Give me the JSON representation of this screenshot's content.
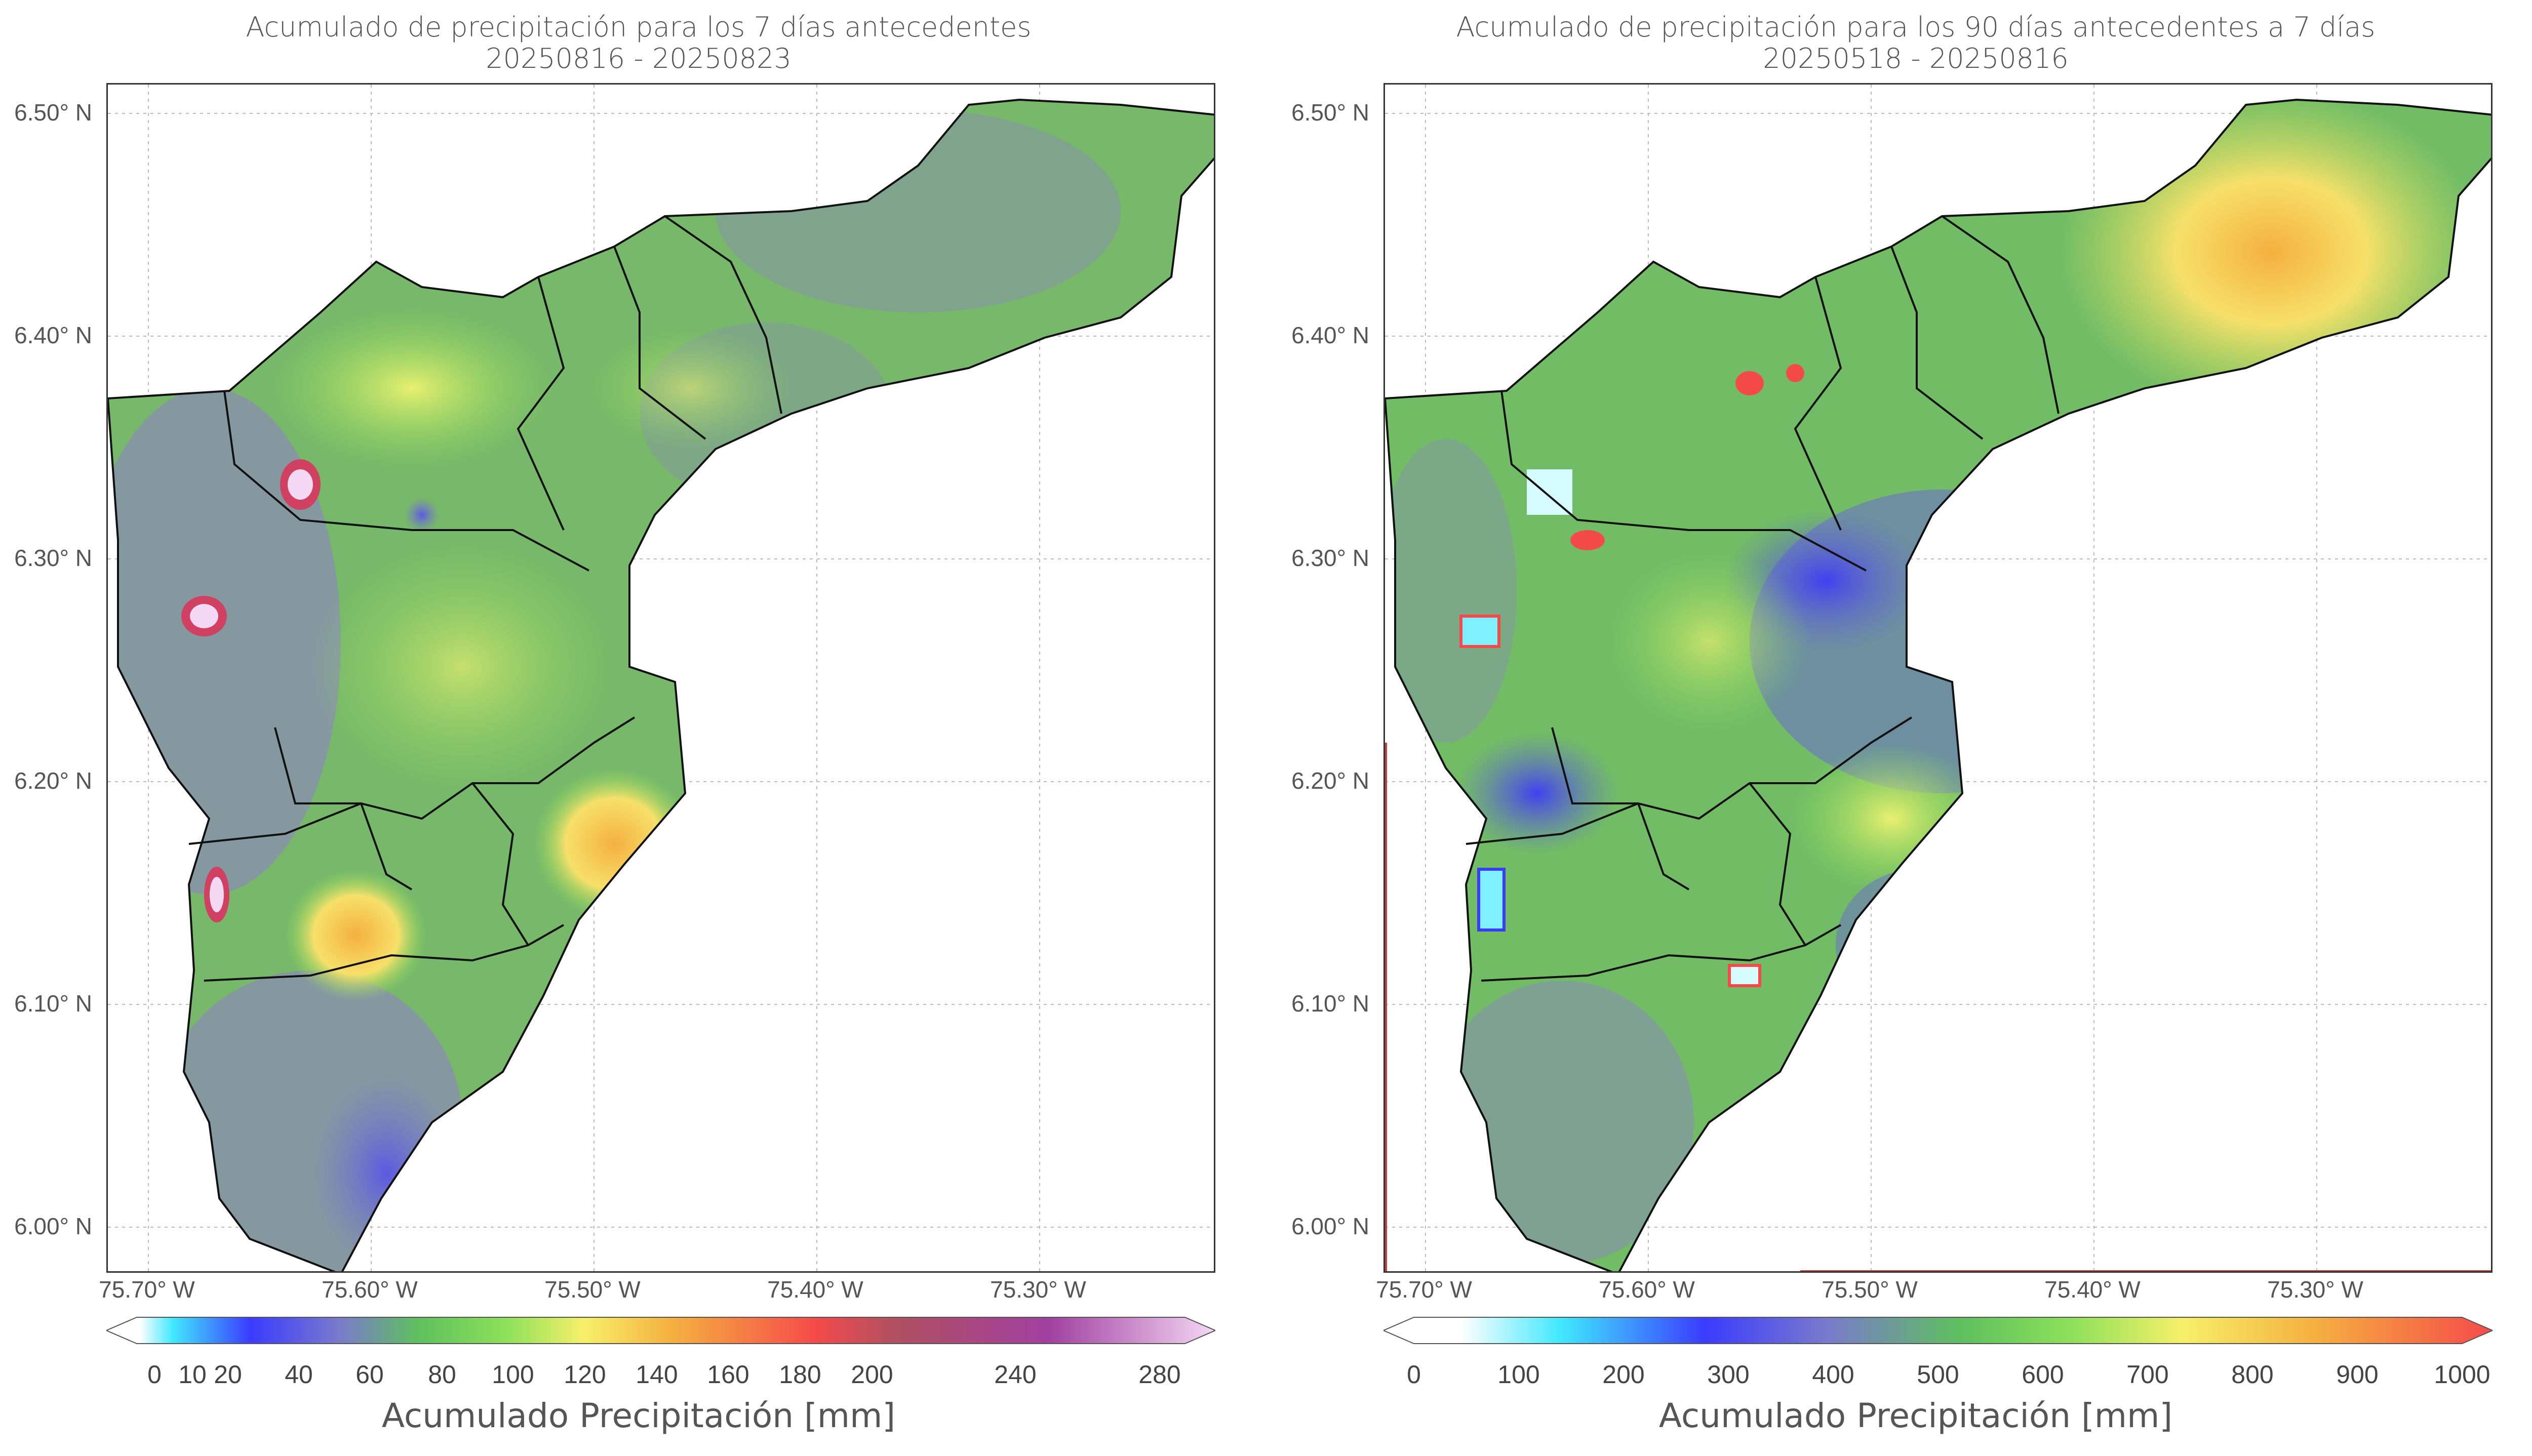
{
  "maps": [
    {
      "title": "Acumulado de precipitación para los 7 días antecedentes",
      "subtitle": "20250816 - 20250823",
      "lat_labels": [
        "6.50° N",
        "6.40° N",
        "6.30° N",
        "6.20° N",
        "6.10° N",
        "6.00° N"
      ],
      "lon_labels": [
        "75.70° W",
        "75.60° W",
        "75.50° W",
        "75.40° W",
        "75.30° W"
      ],
      "colorbar_label": "Acumulado Precipitación [mm]",
      "colorbar_ticks": [
        "0",
        "10",
        "20",
        "40",
        "60",
        "80",
        "100",
        "120",
        "140",
        "160",
        "180",
        "200",
        "240",
        "280"
      ],
      "colorbar_colors": [
        "#ffffff",
        "#40e0ff",
        "#3b3bff",
        "#7a7acc",
        "#5fbf5f",
        "#8de05a",
        "#f6f06a",
        "#f5b040",
        "#f54a4a",
        "#b05060",
        "#a040a0",
        "#f4d8f4"
      ]
    },
    {
      "title": "Acumulado de precipitación para los 90 días antecedentes a 7 días",
      "subtitle": "20250518 - 20250816",
      "lat_labels": [
        "6.50° N",
        "6.40° N",
        "6.30° N",
        "6.20° N",
        "6.10° N",
        "6.00° N"
      ],
      "lon_labels": [
        "75.70° W",
        "75.60° W",
        "75.50° W",
        "75.40° W",
        "75.30° W"
      ],
      "colorbar_label": "Acumulado Precipitación [mm]",
      "colorbar_ticks": [
        "0",
        "100",
        "200",
        "300",
        "400",
        "500",
        "600",
        "700",
        "800",
        "900",
        "1000"
      ],
      "colorbar_colors": [
        "#ffffff",
        "#40e8ff",
        "#3b3bff",
        "#7a7acc",
        "#5fbf5f",
        "#8de05a",
        "#f6f06a",
        "#f5b040",
        "#f54a4a"
      ]
    }
  ]
}
